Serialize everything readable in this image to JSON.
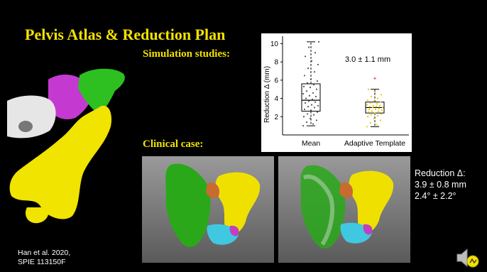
{
  "slide": {
    "title": "Pelvis Atlas & Reduction Plan",
    "simulation_heading": "Simulation studies:",
    "clinical_heading": "Clinical case:",
    "citation_line1": "Han et al. 2020,",
    "citation_line2": "SPIE 113150F",
    "clinical_stats": {
      "line1": "Reduction Δ:",
      "line2": "3.9 ± 0.8 mm",
      "line3": "2.4° ± 2.2°"
    },
    "colors": {
      "title": "#f2e200",
      "background": "#000000",
      "chart_bg": "#ffffff",
      "adaptive_points": "#e8c800",
      "outlier": "#e02020"
    },
    "icons": [
      "speaker-icon"
    ]
  },
  "chart_data": {
    "type": "box",
    "categories": [
      "Mean",
      "Adaptive Template"
    ],
    "ylabel": "Reduction Δ (mm)",
    "ylim": [
      0,
      10.5
    ],
    "yticks": [
      2,
      4,
      6,
      8,
      10
    ],
    "annotation": "3.0 ± 1.1 mm",
    "grid": false,
    "series": [
      {
        "category": "Mean",
        "whisker_low": 1.0,
        "q1": 2.6,
        "median": 3.8,
        "q3": 5.6,
        "whisker_high": 10.2,
        "points": [
          1.0,
          1.2,
          1.4,
          1.6,
          1.8,
          2.0,
          2.2,
          2.3,
          2.5,
          2.7,
          2.8,
          3.0,
          3.1,
          3.2,
          3.3,
          3.5,
          3.6,
          3.7,
          3.8,
          3.9,
          4.0,
          4.2,
          4.3,
          4.5,
          4.6,
          4.8,
          5.0,
          5.2,
          5.3,
          5.5,
          5.7,
          5.9,
          6.1,
          6.5,
          6.9,
          7.3,
          7.7,
          8.1,
          8.6,
          9.0,
          9.6,
          10.2
        ]
      },
      {
        "category": "Adaptive Template",
        "whisker_low": 0.9,
        "q1": 2.4,
        "median": 3.0,
        "q3": 3.6,
        "whisker_high": 5.0,
        "outliers": [
          6.2
        ],
        "points": [
          0.9,
          1.1,
          1.3,
          1.6,
          1.8,
          2.0,
          2.1,
          2.2,
          2.3,
          2.4,
          2.5,
          2.6,
          2.6,
          2.7,
          2.8,
          2.8,
          2.9,
          3.0,
          3.0,
          3.1,
          3.1,
          3.2,
          3.2,
          3.3,
          3.4,
          3.5,
          3.6,
          3.7,
          3.8,
          4.0,
          4.2,
          4.4,
          4.7,
          5.0
        ]
      }
    ]
  }
}
